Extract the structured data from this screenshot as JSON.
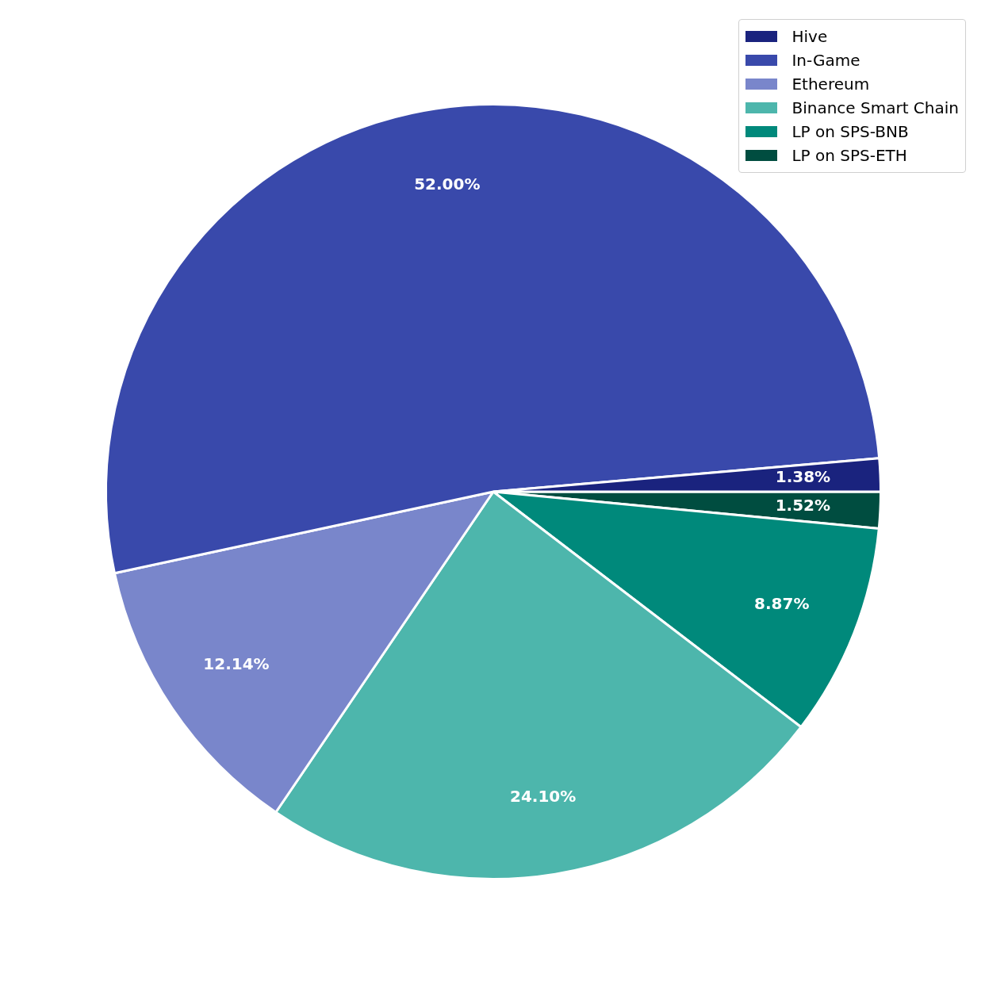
{
  "chart_data": {
    "type": "pie",
    "categories": [
      "Hive",
      "In-Game",
      "Ethereum",
      "Binance Smart Chain",
      "LP on SPS-BNB",
      "LP on SPS-ETH"
    ],
    "values": [
      1.38,
      52.0,
      12.14,
      24.1,
      8.87,
      1.52
    ],
    "value_labels": [
      "1.38%",
      "52.00%",
      "12.14%",
      "24.10%",
      "8.87%",
      "1.52%"
    ],
    "colors": [
      "#1a237e",
      "#3949ab",
      "#7986cb",
      "#4db6ac",
      "#00897b",
      "#004d40"
    ],
    "data_labels": true,
    "legend": "upper right"
  }
}
